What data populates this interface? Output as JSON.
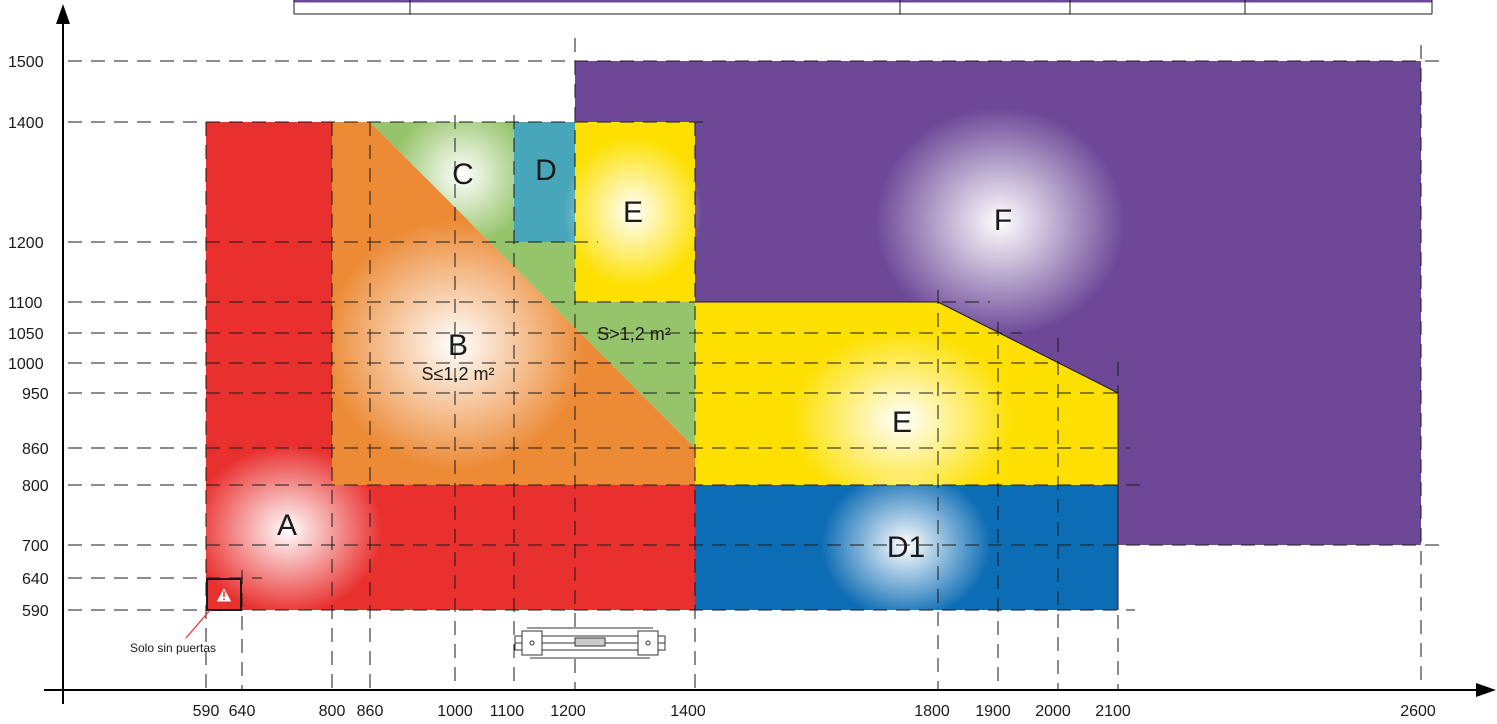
{
  "diagram": {
    "x_ticks": [
      "590",
      "640",
      "800",
      "860",
      "1000",
      "1100",
      "1200",
      "1400",
      "1800",
      "1900",
      "2000",
      "2100",
      "2600"
    ],
    "y_ticks": [
      "1500",
      "1400",
      "1200",
      "1100",
      "1050",
      "1000",
      "950",
      "860",
      "800",
      "700",
      "640",
      "590"
    ],
    "zones": {
      "A": {
        "label": "A",
        "color": "#e8302e"
      },
      "B": {
        "label": "B",
        "note": "S≤1,2 m²",
        "color": "#ec8a35"
      },
      "C": {
        "label": "C",
        "note": "S>1,2 m²",
        "color": "#96c46a"
      },
      "D": {
        "label": "D",
        "color": "#48a6ba"
      },
      "E": {
        "label": "E",
        "color": "#fde001"
      },
      "D1": {
        "label": "D1",
        "color": "#0c6cb4"
      },
      "F": {
        "label": "F",
        "color": "#6c4897"
      }
    },
    "warning_note": "Solo sin puertas",
    "warning_icon": "warning-triangle-icon",
    "device_icon": "sliding-track-icon"
  }
}
